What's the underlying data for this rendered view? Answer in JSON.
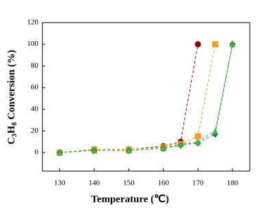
{
  "chart_data": {
    "type": "line",
    "ylabel_parts": [
      "C",
      "3",
      "H",
      "8",
      " Conversion (%)"
    ],
    "xlabel": "Temperature (℃)",
    "x": [
      130,
      140,
      150,
      160,
      165,
      170,
      175,
      180
    ],
    "series": [
      {
        "color": "#8b0000",
        "marker": "circle",
        "values": [
          0,
          3,
          3,
          6,
          10,
          100,
          null,
          null
        ]
      },
      {
        "color": "#f39c32",
        "marker": "square",
        "values": [
          0,
          3,
          3,
          5,
          8,
          15,
          100,
          null
        ]
      },
      {
        "color": "#2e7d32",
        "marker": "diamond",
        "values": [
          0,
          2,
          2,
          4,
          7,
          9,
          17,
          100
        ]
      },
      {
        "color": "#4caf50",
        "marker": "triangle",
        "values": [
          0,
          2,
          2,
          4,
          8,
          10,
          20,
          100
        ]
      }
    ],
    "xlim": [
      125,
      185
    ],
    "xticks": [
      130,
      140,
      150,
      160,
      170,
      180
    ],
    "ylim": [
      -17,
      120
    ],
    "yticks": [
      0,
      20,
      40,
      60,
      80,
      100,
      120
    ]
  }
}
